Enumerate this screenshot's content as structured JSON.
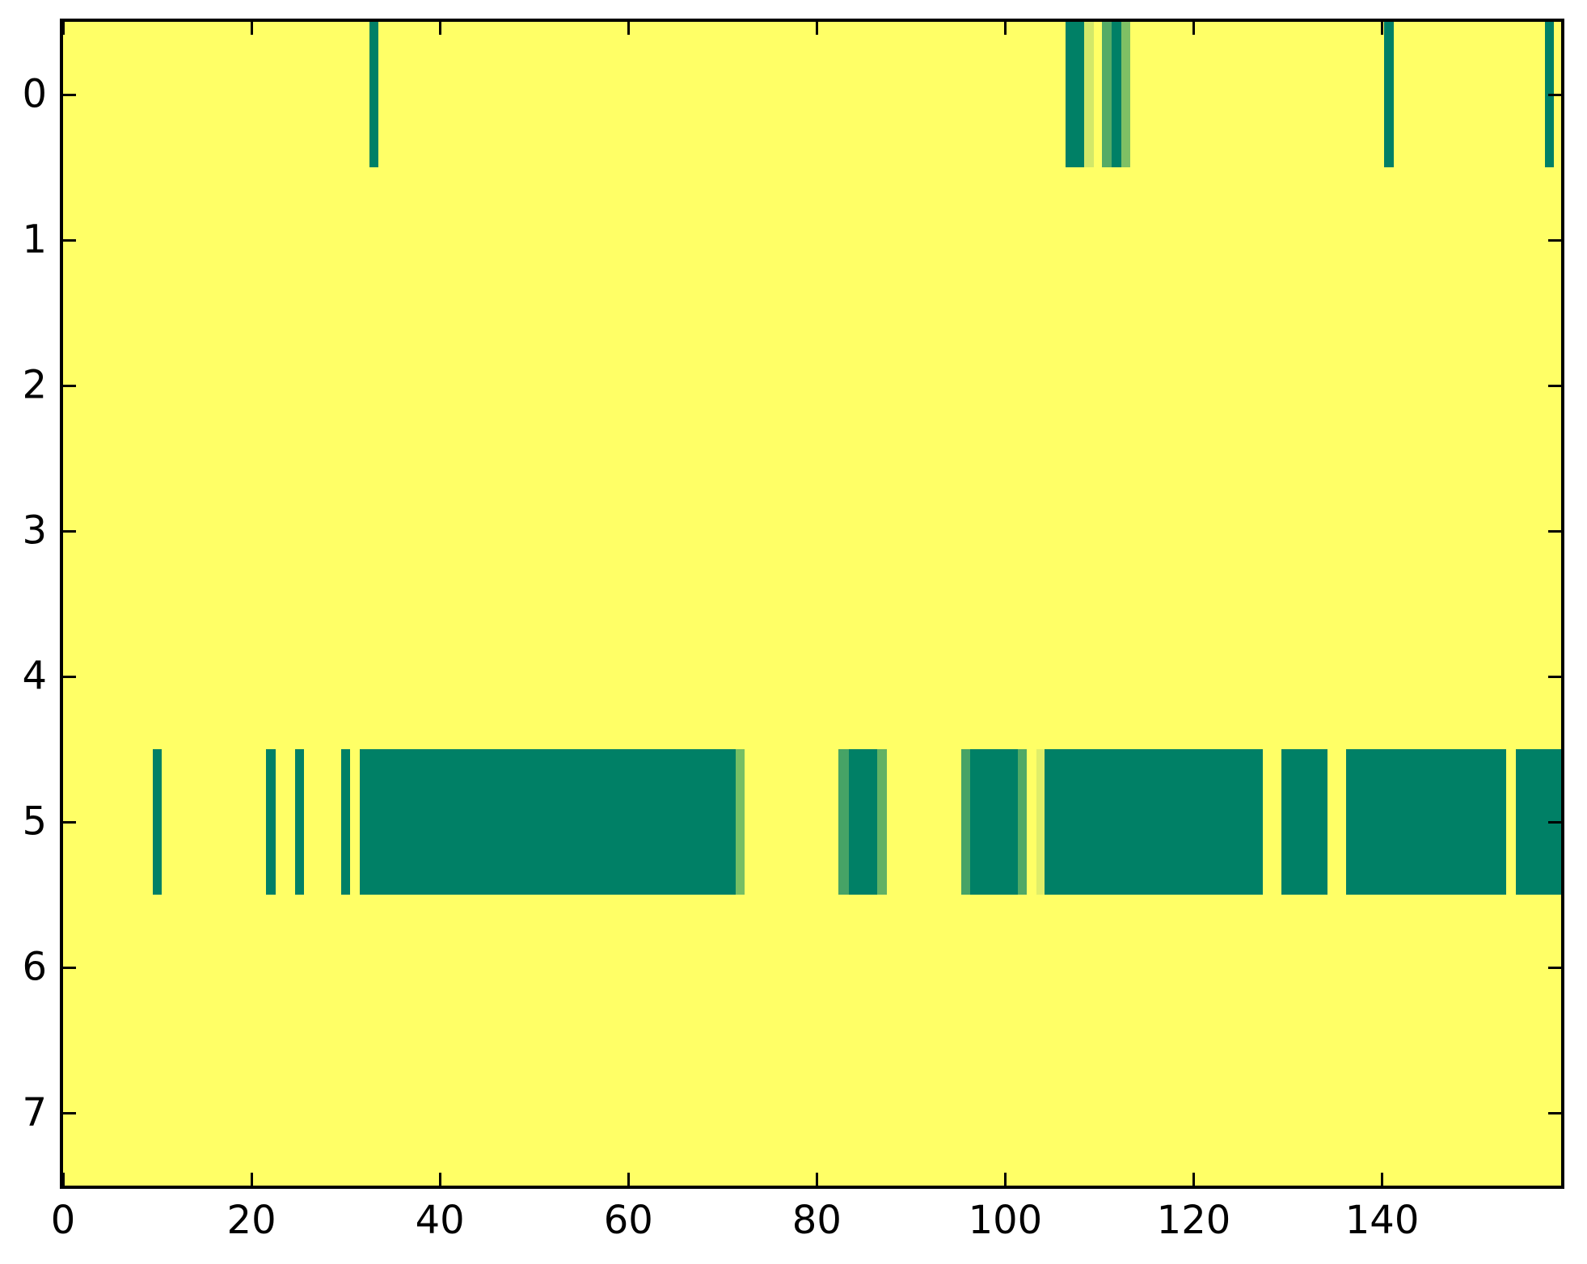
{
  "figure": {
    "background_color": "#ffffff",
    "plot_background_color": "#ffff66",
    "spine_color": "#000000",
    "tick_color": "#000000",
    "tick_label_color": "#000000"
  },
  "chart_data": {
    "type": "heatmap",
    "title": "",
    "xlabel": "",
    "ylabel": "",
    "x_range": [
      0,
      159
    ],
    "n_rows": 8,
    "x_ticks": [
      "0",
      "20",
      "40",
      "60",
      "80",
      "100",
      "120",
      "140"
    ],
    "x_tick_values": [
      0,
      20,
      40,
      60,
      80,
      100,
      120,
      140
    ],
    "y_ticks": [
      "0",
      "1",
      "2",
      "3",
      "4",
      "5",
      "6",
      "7"
    ],
    "y_tick_values": [
      0,
      1,
      2,
      3,
      4,
      5,
      6,
      7
    ],
    "legend": "none",
    "grid": false,
    "colormap": "summer",
    "colormap_note": "high value = yellow #ffff66 (background), low value = teal #008066; intermediate greens between",
    "background_value_color": "#ffff66",
    "segments": [
      {
        "row": 0,
        "start": 32.5,
        "end": 33.5,
        "color": "#008066"
      },
      {
        "row": 0,
        "start": 106.4,
        "end": 108.4,
        "color": "#008066"
      },
      {
        "row": 0,
        "start": 108.4,
        "end": 109.4,
        "color": "#d2e869"
      },
      {
        "row": 0,
        "start": 110.3,
        "end": 111.3,
        "color": "#55ab66"
      },
      {
        "row": 0,
        "start": 111.3,
        "end": 112.3,
        "color": "#008066"
      },
      {
        "row": 0,
        "start": 112.3,
        "end": 113.3,
        "color": "#7fc064"
      },
      {
        "row": 0,
        "start": 140.2,
        "end": 141.2,
        "color": "#008066"
      },
      {
        "row": 0,
        "start": 157.3,
        "end": 158.2,
        "color": "#008066"
      },
      {
        "row": 5,
        "start": 9.5,
        "end": 10.5,
        "color": "#008066"
      },
      {
        "row": 5,
        "start": 21.5,
        "end": 22.6,
        "color": "#008066"
      },
      {
        "row": 5,
        "start": 24.6,
        "end": 25.6,
        "color": "#008066"
      },
      {
        "row": 5,
        "start": 29.5,
        "end": 30.5,
        "color": "#008066"
      },
      {
        "row": 5,
        "start": 31.5,
        "end": 71.4,
        "color": "#008066"
      },
      {
        "row": 5,
        "start": 71.4,
        "end": 72.3,
        "color": "#76be64"
      },
      {
        "row": 5,
        "start": 82.3,
        "end": 83.4,
        "color": "#46a366"
      },
      {
        "row": 5,
        "start": 83.4,
        "end": 86.4,
        "color": "#008066"
      },
      {
        "row": 5,
        "start": 86.4,
        "end": 87.4,
        "color": "#62b164"
      },
      {
        "row": 5,
        "start": 95.3,
        "end": 96.3,
        "color": "#46a366"
      },
      {
        "row": 5,
        "start": 96.3,
        "end": 101.3,
        "color": "#008066"
      },
      {
        "row": 5,
        "start": 101.3,
        "end": 102.3,
        "color": "#50a966"
      },
      {
        "row": 5,
        "start": 103.3,
        "end": 104.2,
        "color": "#e0ee69"
      },
      {
        "row": 5,
        "start": 104.2,
        "end": 127.3,
        "color": "#008066"
      },
      {
        "row": 5,
        "start": 129.3,
        "end": 134.2,
        "color": "#008066"
      },
      {
        "row": 5,
        "start": 136.2,
        "end": 153.2,
        "color": "#008066"
      },
      {
        "row": 5,
        "start": 154.2,
        "end": 159.0,
        "color": "#008066"
      }
    ]
  }
}
